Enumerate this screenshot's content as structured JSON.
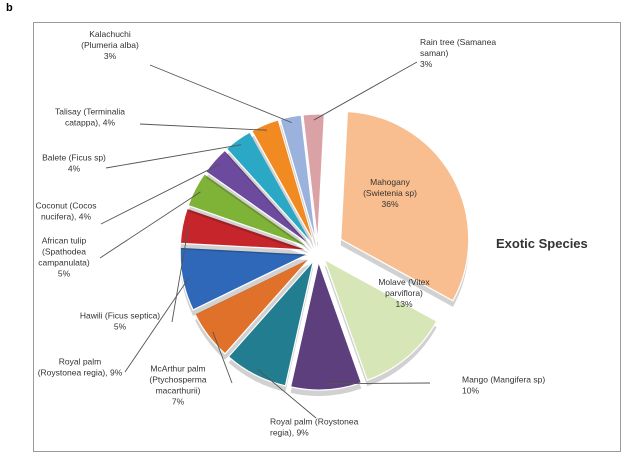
{
  "panel_letter": "b",
  "chart_data": {
    "type": "pie",
    "title": "Exotic Species",
    "slices": [
      {
        "label_lines": [
          "Mahogany",
          "(Swietenia sp)",
          "36%"
        ],
        "value": 36,
        "color": "#f9be8f"
      },
      {
        "label_lines": [
          "Molave (Vitex",
          "parviflora)",
          "13%"
        ],
        "value": 13,
        "color": "#d6e6b6"
      },
      {
        "label_lines": [
          "Mango (Mangifera sp)",
          "10%"
        ],
        "value": 10,
        "color": "#5d3f7d"
      },
      {
        "label_lines": [
          "Royal palm (Roystonea",
          "regia), 9%"
        ],
        "value": 9,
        "color": "#217d8f"
      },
      {
        "label_lines": [
          "McArthur palm",
          "(Ptychosperma",
          "macarthurii)",
          "7%"
        ],
        "value": 7,
        "color": "#e0712a"
      },
      {
        "label_lines": [
          "Royal palm",
          "(Roystonea regia), 9%"
        ],
        "value": 9,
        "color": "#2f68b8"
      },
      {
        "label_lines": [
          "Hawili (Ficus septica)",
          "5%"
        ],
        "value": 5,
        "color": "#c6262b"
      },
      {
        "label_lines": [
          "African tulip",
          "(Spathodea",
          "campanulata)",
          "5%"
        ],
        "value": 5,
        "color": "#7fb338"
      },
      {
        "label_lines": [
          "Coconut (Cocos",
          "nucifera), 4%"
        ],
        "value": 4,
        "color": "#6c4a9e"
      },
      {
        "label_lines": [
          "Balete (Ficus sp)",
          "4%"
        ],
        "value": 4,
        "color": "#2aa8c6"
      },
      {
        "label_lines": [
          "Talisay (Terminalia",
          "catappa), 4%"
        ],
        "value": 4,
        "color": "#f28a22"
      },
      {
        "label_lines": [
          "Kalachuchi",
          "(Plumeria alba)",
          "3%"
        ],
        "value": 3,
        "color": "#9bb2dd"
      },
      {
        "label_lines": [
          "Rain tree (Samanea",
          "saman)",
          "3%"
        ],
        "value": 3,
        "color": "#dba2a6"
      }
    ]
  }
}
